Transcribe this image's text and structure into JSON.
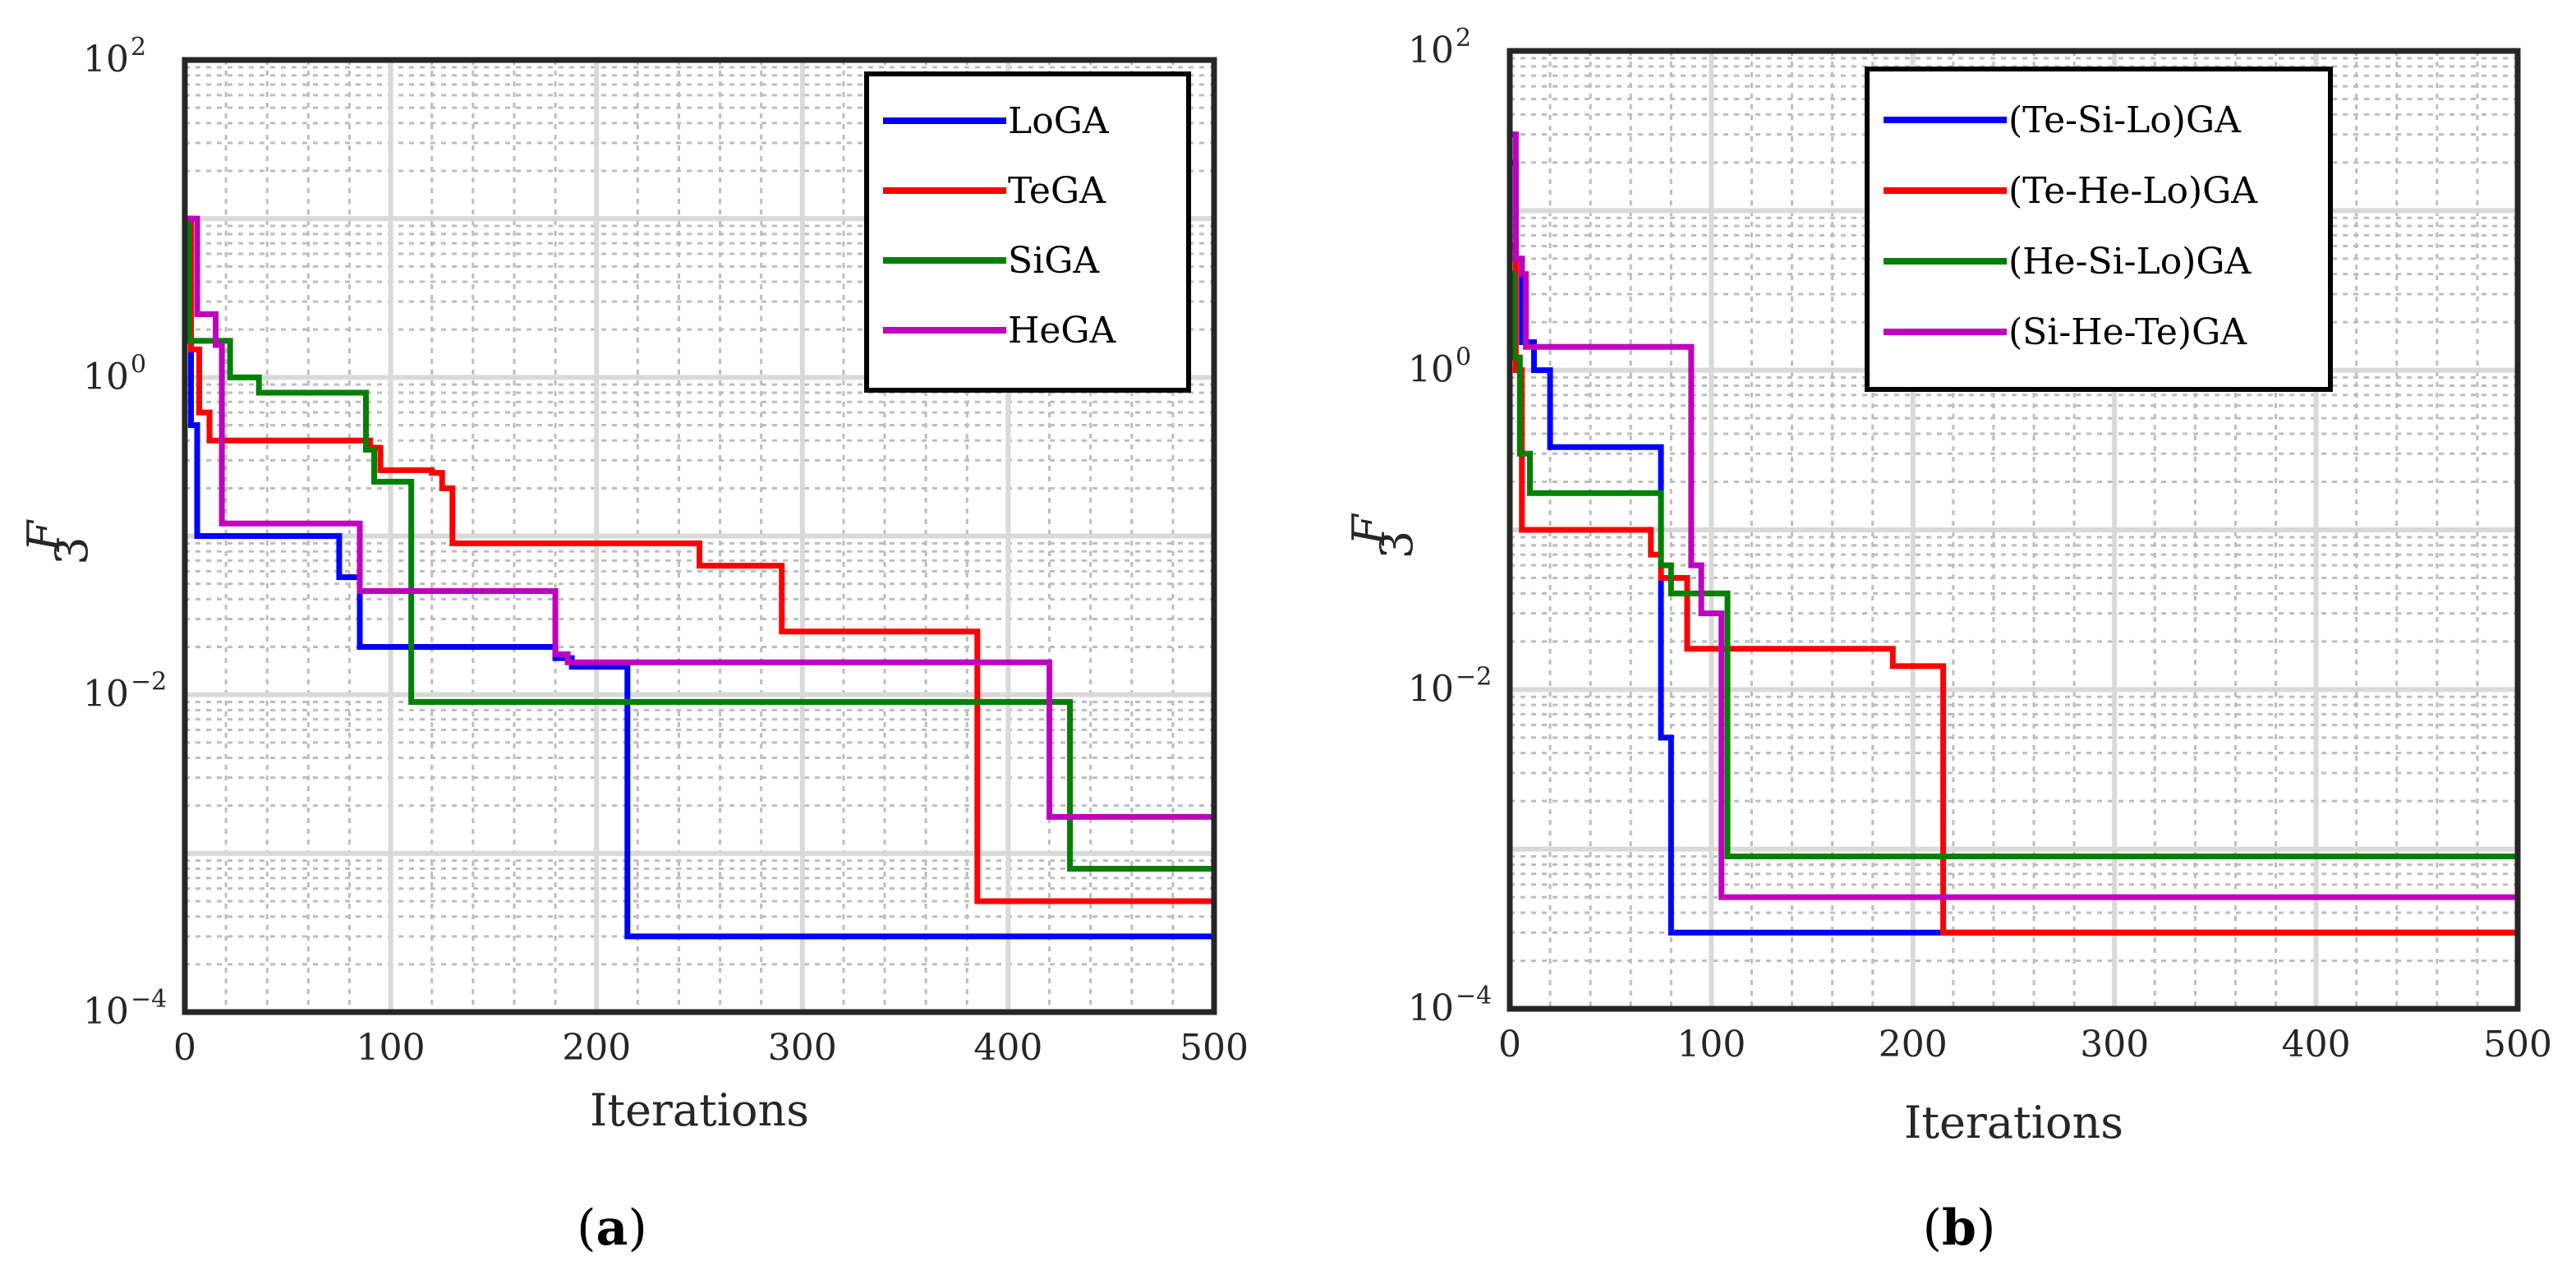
{
  "chart_data": [
    {
      "type": "line",
      "panel": "a",
      "caption_letter": "a",
      "xlabel": "Iterations",
      "ylabel": "F",
      "ylabel_sub": "3",
      "yscale": "log",
      "xlim": [
        0,
        500
      ],
      "ylim": [
        0.0001,
        100
      ],
      "xticks": [
        "0",
        "100",
        "200",
        "300",
        "400",
        "500"
      ],
      "yticks": [
        {
          "base": "10",
          "exp": "2"
        },
        {
          "base": "10",
          "exp": "0"
        },
        {
          "base": "10",
          "exp": "−2"
        },
        {
          "base": "10",
          "exp": "−4"
        }
      ],
      "grid": true,
      "legend_position": "top-right",
      "series": [
        {
          "name": "LoGA",
          "color": "#0000ff",
          "x": [
            0,
            1,
            3,
            6,
            75,
            85,
            180,
            188,
            215,
            500
          ],
          "y": [
            10,
            2,
            0.5,
            0.1,
            0.055,
            0.02,
            0.017,
            0.015,
            0.0003,
            0.0003
          ]
        },
        {
          "name": "TeGA",
          "color": "#ff0000",
          "x": [
            0,
            3,
            7,
            12,
            90,
            95,
            120,
            125,
            130,
            250,
            290,
            385,
            500
          ],
          "y": [
            10,
            1.5,
            0.6,
            0.4,
            0.36,
            0.26,
            0.25,
            0.2,
            0.09,
            0.065,
            0.025,
            0.0005,
            0.0005
          ]
        },
        {
          "name": "SiGA",
          "color": "#008000",
          "x": [
            0,
            2,
            22,
            36,
            88,
            92,
            110,
            430,
            500
          ],
          "y": [
            10,
            1.7,
            1.0,
            0.8,
            0.35,
            0.22,
            0.009,
            0.0008,
            0.0008
          ]
        },
        {
          "name": "HeGA",
          "color": "#bf00bf",
          "x": [
            0,
            6,
            15,
            18,
            85,
            180,
            186,
            420,
            500
          ],
          "y": [
            10,
            2.5,
            1.6,
            0.12,
            0.045,
            0.018,
            0.016,
            0.0017,
            0.0017
          ]
        }
      ]
    },
    {
      "type": "line",
      "panel": "b",
      "caption_letter": "b",
      "xlabel": "Iterations",
      "ylabel": "F",
      "ylabel_sub": "3",
      "yscale": "log",
      "xlim": [
        0,
        500
      ],
      "ylim": [
        0.0001,
        100
      ],
      "xticks": [
        "0",
        "100",
        "200",
        "300",
        "400",
        "500"
      ],
      "yticks": [
        {
          "base": "10",
          "exp": "2"
        },
        {
          "base": "10",
          "exp": "0"
        },
        {
          "base": "10",
          "exp": "−2"
        },
        {
          "base": "10",
          "exp": "−4"
        }
      ],
      "grid": true,
      "legend_position": "top-left",
      "series": [
        {
          "name": "(Te-Si-Lo)GA",
          "color": "#0000ff",
          "x": [
            0,
            3,
            6,
            12,
            20,
            75,
            80,
            500
          ],
          "y": [
            20,
            5,
            1.5,
            1.0,
            0.33,
            0.005,
            0.0003,
            0.0003
          ]
        },
        {
          "name": "(Te-He-Lo)GA",
          "color": "#ff0000",
          "x": [
            0,
            3,
            6,
            70,
            75,
            88,
            190,
            215,
            500
          ],
          "y": [
            6,
            1.0,
            0.1,
            0.07,
            0.05,
            0.018,
            0.014,
            0.0003,
            0.0003
          ]
        },
        {
          "name": "(He-Si-Lo)GA",
          "color": "#008000",
          "x": [
            0,
            2,
            5,
            10,
            75,
            80,
            108,
            500
          ],
          "y": [
            4,
            1.2,
            0.3,
            0.17,
            0.06,
            0.04,
            0.0009,
            0.0009
          ]
        },
        {
          "name": "(Si-He-Te)GA",
          "color": "#bf00bf",
          "x": [
            0,
            3,
            6,
            8,
            90,
            95,
            105,
            500
          ],
          "y": [
            30,
            5,
            4,
            1.4,
            0.06,
            0.03,
            0.0005,
            0.0005
          ]
        }
      ]
    }
  ]
}
